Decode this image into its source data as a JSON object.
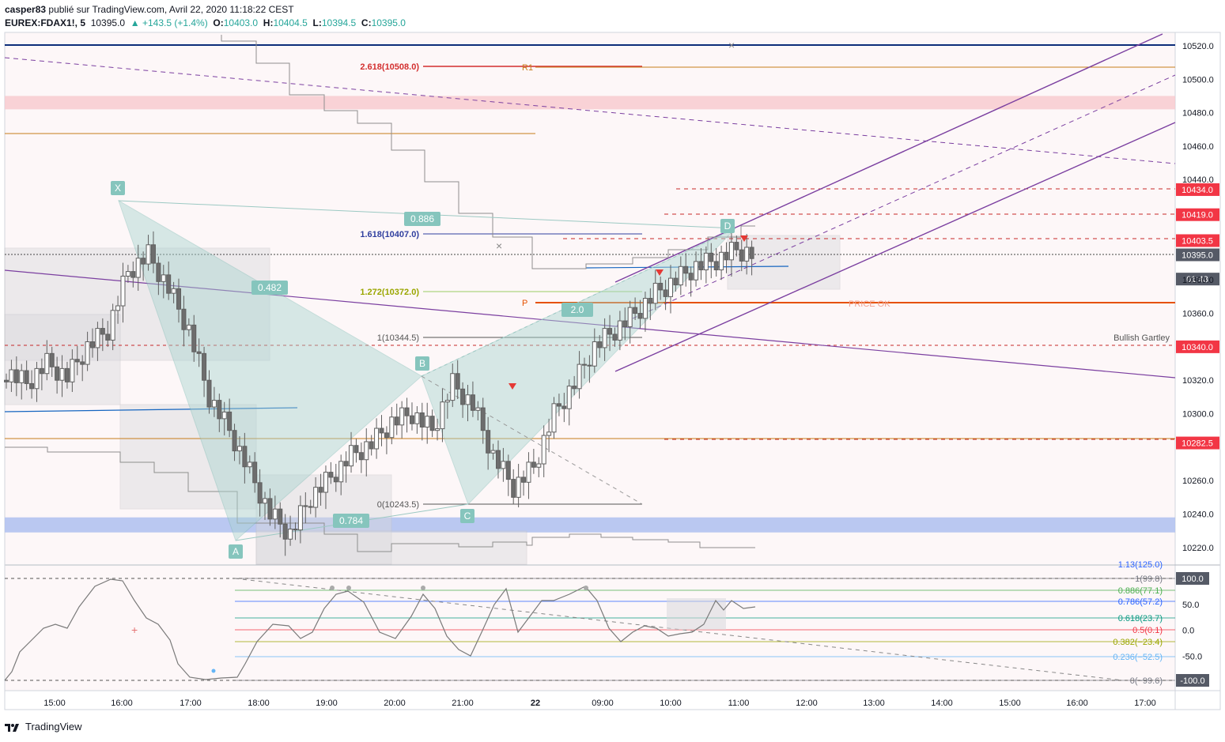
{
  "header": {
    "author": "casper83",
    "published": "publié sur TradingView.com, Avril 22, 2020 11:18:22 CEST",
    "symbol": "EUREX:FDAX1!, 5",
    "last": "10395.0",
    "change": "▲ +143.5 (+1.4%)",
    "o_label": "O:",
    "o": "10403.0",
    "h_label": "H:",
    "h": "10404.5",
    "l_label": "L:",
    "l": "10394.5",
    "c_label": "C:",
    "c": "10395.0"
  },
  "footer": {
    "brand": "TradingView"
  },
  "price_axis": {
    "ticks": [
      "10520.0",
      "10500.0",
      "10480.0",
      "10460.0",
      "10440.0",
      "10360.0",
      "10320.0",
      "10300.0",
      "10260.0",
      "10240.0",
      "10220.0"
    ],
    "tick_values": [
      10520,
      10500,
      10480,
      10460,
      10440,
      10360,
      10320,
      10300,
      10260,
      10240,
      10220
    ],
    "tags": [
      {
        "label": "10434.0",
        "value": 10434,
        "color": "#f23645"
      },
      {
        "label": "10419.0",
        "value": 10419,
        "color": "#f23645"
      },
      {
        "label": "10403.5",
        "value": 10403.5,
        "color": "#f23645"
      },
      {
        "label": "10395.0",
        "value": 10395,
        "color": "#555a66"
      },
      {
        "label": "01:43",
        "value": 10380.5,
        "color": "#555a66"
      },
      {
        "label": "10380.0",
        "value": 10380,
        "color": "none"
      },
      {
        "label": "10340.0",
        "value": 10340,
        "color": "#f23645"
      },
      {
        "label": "10282.5",
        "value": 10282.5,
        "color": "#f23645"
      }
    ]
  },
  "osc_axis": {
    "ticks": [
      "50.0",
      "0.0",
      "-50.0"
    ],
    "tick_values": [
      50,
      0,
      -50
    ],
    "tags": [
      {
        "label": "100.0",
        "value": 100
      },
      {
        "label": "-100.0",
        "value": -100
      }
    ]
  },
  "time_axis": {
    "labels": [
      "15:00",
      "16:00",
      "17:00",
      "18:00",
      "19:00",
      "20:00",
      "21:00",
      "22",
      "09:00",
      "10:00",
      "11:00",
      "12:00",
      "13:00",
      "14:00",
      "15:00",
      "16:00",
      "17:00"
    ]
  },
  "annotations": {
    "fib_2618": "2.618(10508.0)",
    "fib_1618": "1.618(10407.0)",
    "fib_1272": "1.272(10372.0)",
    "fib_1": "1(10344.5)",
    "fib_0": "0(10243.5)",
    "r1": "R1",
    "p": "P",
    "price_ok": "PRICE OK",
    "bullish_gartley": "Bullish Gartley",
    "pt_x": "X",
    "pt_a": "A",
    "pt_b": "B",
    "pt_c": "C",
    "pt_d": "D",
    "r0886": "0.886",
    "r0482": "0.482",
    "r0784": "0.784",
    "r2": "2.0"
  },
  "osc_fib": [
    {
      "label": "1.13(125.0)",
      "color": "#2962ff"
    },
    {
      "label": "1(99.8)",
      "color": "#787b86"
    },
    {
      "label": "0.886(77.1)",
      "color": "#4caf50"
    },
    {
      "label": "0.786(57.2)",
      "color": "#2962ff"
    },
    {
      "label": "0.618(23.7)",
      "color": "#089981"
    },
    {
      "label": "0.5(0.1)",
      "color": "#f23645"
    },
    {
      "label": "0.382(−23.4)",
      "color": "#9aa600"
    },
    {
      "label": "0.236(−52.5)",
      "color": "#64b5f6"
    },
    {
      "label": "0(−99.6)",
      "color": "#787b86"
    }
  ],
  "chart_data": {
    "type": "candlestick",
    "symbol": "EUREX:FDAX1!",
    "interval": "5",
    "ylim": [
      10210,
      10528
    ],
    "osc_ylim": [
      -100,
      100
    ],
    "candles_approx_close": [
      10325,
      10318,
      10330,
      10322,
      10340,
      10350,
      10385,
      10395,
      10375,
      10350,
      10310,
      10290,
      10265,
      10240,
      10228,
      10250,
      10262,
      10275,
      10282,
      10295,
      10300,
      10290,
      10318,
      10305,
      10275,
      10256,
      10268,
      10300,
      10318,
      10340,
      10350,
      10360,
      10372,
      10380,
      10388,
      10392,
      10398,
      10395
    ],
    "horizontal_levels": [
      10520,
      10508,
      10487,
      10467,
      10434,
      10419,
      10403.5,
      10395,
      10380,
      10365,
      10340,
      10282.5,
      10234,
      10230
    ]
  }
}
